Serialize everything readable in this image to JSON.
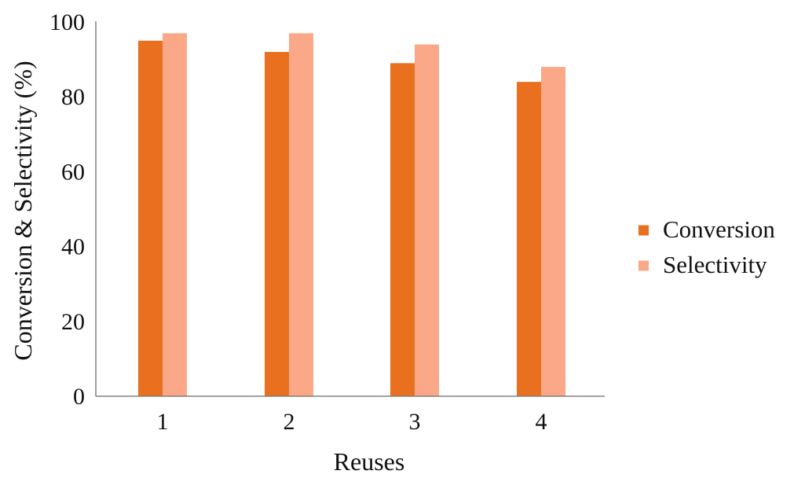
{
  "chart_data": {
    "type": "bar",
    "title": "",
    "xlabel": "Reuses",
    "ylabel": "Conversion & Selectivity (%)",
    "categories": [
      "1",
      "2",
      "3",
      "4"
    ],
    "series": [
      {
        "name": "Conversion",
        "values": [
          95,
          92,
          89,
          84
        ],
        "color": "#E8701E"
      },
      {
        "name": "Selectivity",
        "values": [
          97,
          97,
          94,
          88
        ],
        "color": "#FBA889"
      }
    ],
    "ylim": [
      0,
      100
    ],
    "yticks": [
      0,
      20,
      40,
      60,
      80,
      100
    ],
    "grid": false,
    "legend_position": "right"
  }
}
